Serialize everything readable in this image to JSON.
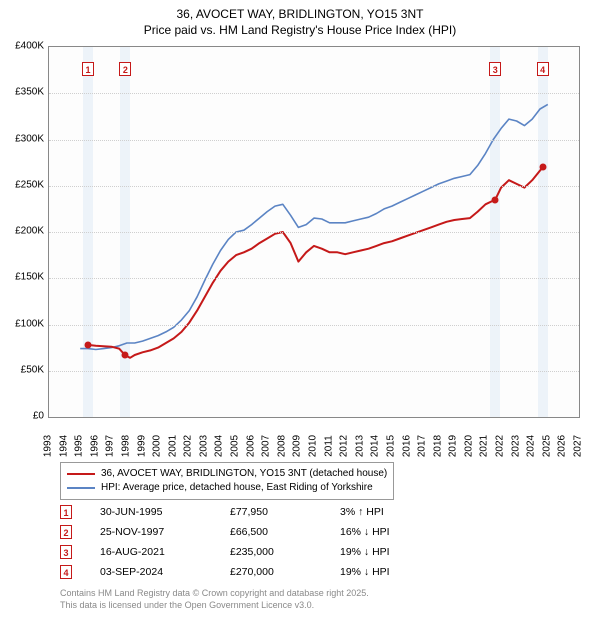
{
  "title_line1": "36, AVOCET WAY, BRIDLINGTON, YO15 3NT",
  "title_line2": "Price paid vs. HM Land Registry's House Price Index (HPI)",
  "chart": {
    "type": "line",
    "x_start_year": 1993,
    "x_end_year": 2027,
    "x_tick_step": 1,
    "ylim": [
      0,
      400000
    ],
    "y_ticks": [
      0,
      50000,
      100000,
      150000,
      200000,
      250000,
      300000,
      350000,
      400000
    ],
    "y_tick_labels": [
      "£0",
      "£50K",
      "£100K",
      "£150K",
      "£200K",
      "£250K",
      "£300K",
      "£350K",
      "£400K"
    ],
    "grid_color": "#cfcfcf",
    "background_color": "#fdfdfd",
    "band_color": "#e6eef7",
    "marker_colors": [
      "#c51919",
      "#c51919",
      "#c51919",
      "#c51919"
    ],
    "series": [
      {
        "name": "hpi",
        "color": "#5b84c4",
        "width": 1.6,
        "points": [
          [
            1995.0,
            74000
          ],
          [
            1995.5,
            74000
          ],
          [
            1996.0,
            73000
          ],
          [
            1996.5,
            74000
          ],
          [
            1997.0,
            75000
          ],
          [
            1997.5,
            77000
          ],
          [
            1998.0,
            80000
          ],
          [
            1998.5,
            80000
          ],
          [
            1999.0,
            82000
          ],
          [
            1999.5,
            85000
          ],
          [
            2000.0,
            88000
          ],
          [
            2000.5,
            92000
          ],
          [
            2001.0,
            97000
          ],
          [
            2001.5,
            105000
          ],
          [
            2002.0,
            115000
          ],
          [
            2002.5,
            130000
          ],
          [
            2003.0,
            148000
          ],
          [
            2003.5,
            165000
          ],
          [
            2004.0,
            180000
          ],
          [
            2004.5,
            192000
          ],
          [
            2005.0,
            200000
          ],
          [
            2005.5,
            202000
          ],
          [
            2006.0,
            208000
          ],
          [
            2006.5,
            215000
          ],
          [
            2007.0,
            222000
          ],
          [
            2007.5,
            228000
          ],
          [
            2008.0,
            230000
          ],
          [
            2008.5,
            218000
          ],
          [
            2009.0,
            205000
          ],
          [
            2009.5,
            208000
          ],
          [
            2010.0,
            215000
          ],
          [
            2010.5,
            214000
          ],
          [
            2011.0,
            210000
          ],
          [
            2011.5,
            210000
          ],
          [
            2012.0,
            210000
          ],
          [
            2012.5,
            212000
          ],
          [
            2013.0,
            214000
          ],
          [
            2013.5,
            216000
          ],
          [
            2014.0,
            220000
          ],
          [
            2014.5,
            225000
          ],
          [
            2015.0,
            228000
          ],
          [
            2015.5,
            232000
          ],
          [
            2016.0,
            236000
          ],
          [
            2016.5,
            240000
          ],
          [
            2017.0,
            244000
          ],
          [
            2017.5,
            248000
          ],
          [
            2018.0,
            252000
          ],
          [
            2018.5,
            255000
          ],
          [
            2019.0,
            258000
          ],
          [
            2019.5,
            260000
          ],
          [
            2020.0,
            262000
          ],
          [
            2020.5,
            272000
          ],
          [
            2021.0,
            285000
          ],
          [
            2021.5,
            300000
          ],
          [
            2022.0,
            312000
          ],
          [
            2022.5,
            322000
          ],
          [
            2023.0,
            320000
          ],
          [
            2023.5,
            315000
          ],
          [
            2024.0,
            322000
          ],
          [
            2024.5,
            333000
          ],
          [
            2025.0,
            338000
          ]
        ]
      },
      {
        "name": "property",
        "color": "#c51919",
        "width": 2.0,
        "points": [
          [
            1995.5,
            77950
          ],
          [
            1996.0,
            77000
          ],
          [
            1996.5,
            76500
          ],
          [
            1997.0,
            76000
          ],
          [
            1997.5,
            74000
          ],
          [
            1997.9,
            66500
          ],
          [
            1998.2,
            64000
          ],
          [
            1998.5,
            67000
          ],
          [
            1999.0,
            70000
          ],
          [
            1999.5,
            72000
          ],
          [
            2000.0,
            75000
          ],
          [
            2000.5,
            80000
          ],
          [
            2001.0,
            85000
          ],
          [
            2001.5,
            92000
          ],
          [
            2002.0,
            102000
          ],
          [
            2002.5,
            115000
          ],
          [
            2003.0,
            130000
          ],
          [
            2003.5,
            145000
          ],
          [
            2004.0,
            158000
          ],
          [
            2004.5,
            168000
          ],
          [
            2005.0,
            175000
          ],
          [
            2005.5,
            178000
          ],
          [
            2006.0,
            182000
          ],
          [
            2006.5,
            188000
          ],
          [
            2007.0,
            193000
          ],
          [
            2007.5,
            198000
          ],
          [
            2008.0,
            200000
          ],
          [
            2008.5,
            188000
          ],
          [
            2009.0,
            168000
          ],
          [
            2009.5,
            178000
          ],
          [
            2010.0,
            185000
          ],
          [
            2010.5,
            182000
          ],
          [
            2011.0,
            178000
          ],
          [
            2011.5,
            178000
          ],
          [
            2012.0,
            176000
          ],
          [
            2012.5,
            178000
          ],
          [
            2013.0,
            180000
          ],
          [
            2013.5,
            182000
          ],
          [
            2014.0,
            185000
          ],
          [
            2014.5,
            188000
          ],
          [
            2015.0,
            190000
          ],
          [
            2015.5,
            193000
          ],
          [
            2016.0,
            196000
          ],
          [
            2016.5,
            199000
          ],
          [
            2017.0,
            202000
          ],
          [
            2017.5,
            205000
          ],
          [
            2018.0,
            208000
          ],
          [
            2018.5,
            211000
          ],
          [
            2019.0,
            213000
          ],
          [
            2019.5,
            214000
          ],
          [
            2020.0,
            215000
          ],
          [
            2020.5,
            222000
          ],
          [
            2021.0,
            230000
          ],
          [
            2021.63,
            235000
          ],
          [
            2022.0,
            248000
          ],
          [
            2022.5,
            256000
          ],
          [
            2023.0,
            252000
          ],
          [
            2023.5,
            248000
          ],
          [
            2024.0,
            256000
          ],
          [
            2024.67,
            270000
          ]
        ]
      }
    ],
    "transactions": [
      {
        "n": "1",
        "year": 1995.5,
        "price": 77950,
        "top_pct": 4
      },
      {
        "n": "2",
        "year": 1997.9,
        "price": 66500,
        "top_pct": 4
      },
      {
        "n": "3",
        "year": 2021.63,
        "price": 235000,
        "top_pct": 4
      },
      {
        "n": "4",
        "year": 2024.67,
        "price": 270000,
        "top_pct": 4
      }
    ]
  },
  "legend": {
    "items": [
      {
        "color": "#c51919",
        "label": "36, AVOCET WAY, BRIDLINGTON, YO15 3NT (detached house)"
      },
      {
        "color": "#5b84c4",
        "label": "HPI: Average price, detached house, East Riding of Yorkshire"
      }
    ]
  },
  "transactions_table": [
    {
      "n": "1",
      "color": "#c51919",
      "date": "30-JUN-1995",
      "price": "£77,950",
      "delta": "3% ↑ HPI",
      "arrow": "↑"
    },
    {
      "n": "2",
      "color": "#c51919",
      "date": "25-NOV-1997",
      "price": "£66,500",
      "delta": "16% ↓ HPI",
      "arrow": "↓"
    },
    {
      "n": "3",
      "color": "#c51919",
      "date": "16-AUG-2021",
      "price": "£235,000",
      "delta": "19% ↓ HPI",
      "arrow": "↓"
    },
    {
      "n": "4",
      "color": "#c51919",
      "date": "03-SEP-2024",
      "price": "£270,000",
      "delta": "19% ↓ HPI",
      "arrow": "↓"
    }
  ],
  "footer_line1": "Contains HM Land Registry data © Crown copyright and database right 2025.",
  "footer_line2": "This data is licensed under the Open Government Licence v3.0."
}
